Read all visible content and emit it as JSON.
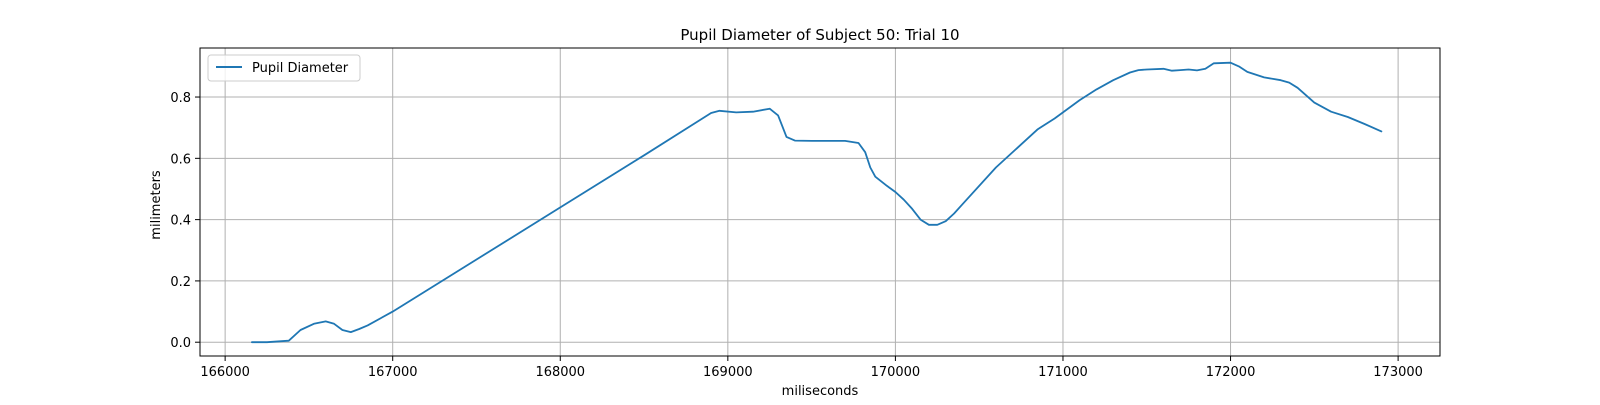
{
  "chart_data": {
    "type": "line",
    "title": "Pupil Diameter of Subject 50: Trial 10",
    "xlabel": "miliseconds",
    "ylabel": "milimeters",
    "xlim": [
      165850,
      173250
    ],
    "ylim": [
      -0.045,
      0.96
    ],
    "xticks": [
      166000,
      167000,
      168000,
      169000,
      170000,
      171000,
      172000,
      173000
    ],
    "yticks": [
      0.0,
      0.2,
      0.4,
      0.6,
      0.8
    ],
    "ytick_labels": [
      "0.0",
      "0.2",
      "0.4",
      "0.6",
      "0.8"
    ],
    "grid": true,
    "legend": {
      "position": "top-left",
      "entries": [
        "Pupil Diameter"
      ]
    },
    "series": [
      {
        "name": "Pupil Diameter",
        "color": "#1f77b4",
        "x": [
          166160,
          166250,
          166380,
          166450,
          166530,
          166600,
          166650,
          166700,
          166750,
          166800,
          166850,
          167000,
          167500,
          168000,
          168500,
          168900,
          168950,
          169050,
          169150,
          169250,
          169300,
          169350,
          169400,
          169500,
          169700,
          169780,
          169820,
          169850,
          169880,
          169950,
          170000,
          170050,
          170100,
          170150,
          170200,
          170250,
          170300,
          170350,
          170400,
          170600,
          170850,
          170950,
          171100,
          171200,
          171300,
          171400,
          171450,
          171500,
          171600,
          171650,
          171700,
          171750,
          171800,
          171850,
          171900,
          172000,
          172050,
          172100,
          172200,
          172300,
          172350,
          172400,
          172500,
          172600,
          172700,
          172800,
          172900
        ],
        "y": [
          0.0,
          0.0,
          0.005,
          0.04,
          0.06,
          0.068,
          0.06,
          0.04,
          0.033,
          0.043,
          0.055,
          0.1,
          0.27,
          0.44,
          0.61,
          0.748,
          0.755,
          0.75,
          0.752,
          0.762,
          0.74,
          0.67,
          0.658,
          0.657,
          0.657,
          0.65,
          0.62,
          0.57,
          0.54,
          0.51,
          0.49,
          0.465,
          0.435,
          0.4,
          0.383,
          0.383,
          0.395,
          0.42,
          0.45,
          0.57,
          0.695,
          0.73,
          0.79,
          0.825,
          0.855,
          0.88,
          0.888,
          0.89,
          0.892,
          0.886,
          0.888,
          0.89,
          0.887,
          0.892,
          0.91,
          0.912,
          0.9,
          0.882,
          0.864,
          0.855,
          0.847,
          0.83,
          0.782,
          0.752,
          0.735,
          0.712,
          0.688
        ]
      }
    ]
  }
}
